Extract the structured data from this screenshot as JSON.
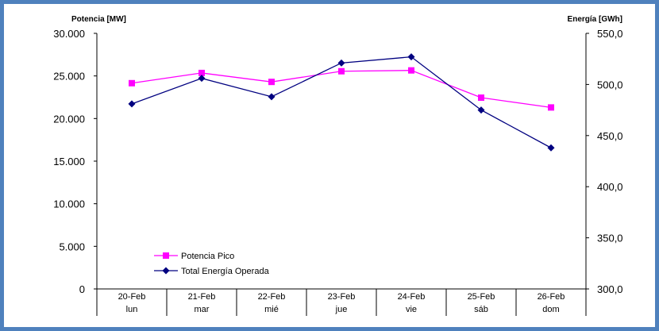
{
  "chart_data": {
    "type": "line",
    "categories": [
      "20-Feb",
      "21-Feb",
      "22-Feb",
      "23-Feb",
      "24-Feb",
      "25-Feb",
      "26-Feb"
    ],
    "day_labels": [
      "lun",
      "mar",
      "mié",
      "jue",
      "vie",
      "sáb",
      "dom"
    ],
    "y_left": {
      "label": "Potencia [MW]",
      "range": [
        0,
        30000
      ],
      "ticks": [
        "0",
        "5.000",
        "10.000",
        "15.000",
        "20.000",
        "25.000",
        "30.000"
      ]
    },
    "y_right": {
      "label": "Energía [GWh]",
      "range": [
        300,
        550
      ],
      "ticks": [
        "300,0",
        "350,0",
        "400,0",
        "450,0",
        "500,0",
        "550,0"
      ]
    },
    "series": [
      {
        "name": "Potencia Pico",
        "axis": "left",
        "color": "#ff00ff",
        "marker": "square",
        "values": [
          24150,
          25350,
          24300,
          25550,
          25650,
          22450,
          21300
        ]
      },
      {
        "name": "Total Energía Operada",
        "axis": "right",
        "color": "#000080",
        "marker": "diamond",
        "values": [
          481,
          506,
          488,
          521,
          527,
          475,
          438
        ]
      }
    ],
    "legend_position": "bottom-left",
    "grid": false
  }
}
